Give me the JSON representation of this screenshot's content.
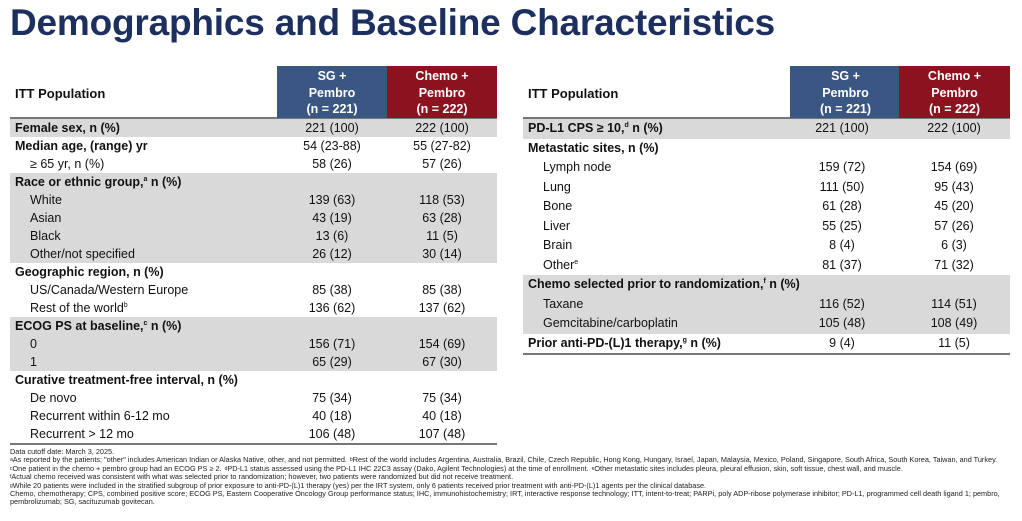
{
  "title": "Demographics and Baseline Characteristics",
  "columns": {
    "population": "ITT Population",
    "sg": [
      "SG +",
      "Pembro",
      "(n = 221)"
    ],
    "chemo": [
      "Chemo +",
      "Pembro",
      "(n = 222)"
    ]
  },
  "colors": {
    "sg_header": "#3a5682",
    "chemo_header": "#8c1220",
    "shade": "#d9d9d9",
    "title": "#1c2f5e"
  },
  "left_rows": [
    {
      "label": "Female sex, n (%)",
      "type": "head",
      "shade": true,
      "v1": "221 (100)",
      "v2": "222 (100)"
    },
    {
      "label": "Median age, (range) yr",
      "type": "head",
      "shade": false,
      "v1": "54 (23-88)",
      "v2": "55 (27-82)"
    },
    {
      "label": "≥ 65 yr, n (%)",
      "type": "sub0",
      "shade": false,
      "v1": "58 (26)",
      "v2": "57 (26)"
    },
    {
      "label": "Race or ethnic group,",
      "sup": "a",
      "rest": " n (%)",
      "type": "head",
      "shade": true
    },
    {
      "label": "White",
      "type": "sub",
      "shade": true,
      "v1": "139 (63)",
      "v2": "118 (53)"
    },
    {
      "label": "Asian",
      "type": "sub",
      "shade": true,
      "v1": "43 (19)",
      "v2": "63 (28)"
    },
    {
      "label": "Black",
      "type": "sub",
      "shade": true,
      "v1": "13 (6)",
      "v2": "11 (5)"
    },
    {
      "label": "Other/not specified",
      "type": "sub",
      "shade": true,
      "v1": "26 (12)",
      "v2": "30 (14)"
    },
    {
      "label": "Geographic region, n (%)",
      "type": "head",
      "shade": false
    },
    {
      "label": "US/Canada/Western Europe",
      "type": "sub",
      "shade": false,
      "v1": "85 (38)",
      "v2": "85 (38)"
    },
    {
      "label": "Rest of the world",
      "sup": "b",
      "type": "sub",
      "shade": false,
      "v1": "136 (62)",
      "v2": "137 (62)"
    },
    {
      "label": "ECOG PS at baseline,",
      "sup": "c",
      "rest": " n (%)",
      "type": "head",
      "shade": true
    },
    {
      "label": "0",
      "type": "sub",
      "shade": true,
      "v1": "156 (71)",
      "v2": "154 (69)"
    },
    {
      "label": "1",
      "type": "sub",
      "shade": true,
      "v1": "65 (29)",
      "v2": "67 (30)"
    },
    {
      "label": "Curative treatment-free interval, n (%)",
      "type": "head",
      "shade": false
    },
    {
      "label": "De novo",
      "type": "sub",
      "shade": false,
      "v1": "75 (34)",
      "v2": "75 (34)"
    },
    {
      "label": "Recurrent within 6-12 mo",
      "type": "sub",
      "shade": false,
      "v1": "40 (18)",
      "v2": "40 (18)"
    },
    {
      "label": "Recurrent > 12 mo",
      "type": "sub",
      "shade": false,
      "v1": "106 (48)",
      "v2": "107 (48)"
    }
  ],
  "right_rows": [
    {
      "label": "PD-L1 CPS ≥ 10,",
      "sup": "d",
      "rest": " n (%)",
      "type": "head",
      "shade": true,
      "v1": "221 (100)",
      "v2": "222 (100)"
    },
    {
      "label": "Metastatic sites, n (%)",
      "type": "head",
      "shade": false
    },
    {
      "label": "Lymph node",
      "type": "sub",
      "shade": false,
      "v1": "159 (72)",
      "v2": "154 (69)"
    },
    {
      "label": "Lung",
      "type": "sub",
      "shade": false,
      "v1": "111 (50)",
      "v2": "95 (43)"
    },
    {
      "label": "Bone",
      "type": "sub",
      "shade": false,
      "v1": "61 (28)",
      "v2": "45 (20)"
    },
    {
      "label": "Liver",
      "type": "sub",
      "shade": false,
      "v1": "55 (25)",
      "v2": "57 (26)"
    },
    {
      "label": "Brain",
      "type": "sub",
      "shade": false,
      "v1": "8 (4)",
      "v2": "6 (3)"
    },
    {
      "label": "Other",
      "sup": "e",
      "type": "sub",
      "shade": false,
      "v1": "81 (37)",
      "v2": "71 (32)"
    },
    {
      "label": "Chemo selected prior to randomization,",
      "sup": "f",
      "rest": " n (%)",
      "type": "head",
      "shade": true
    },
    {
      "label": "Taxane",
      "type": "sub",
      "shade": true,
      "v1": "116 (52)",
      "v2": "114 (51)"
    },
    {
      "label": "Gemcitabine/carboplatin",
      "type": "sub",
      "shade": true,
      "v1": "105 (48)",
      "v2": "108 (49)"
    },
    {
      "label": "Prior anti-PD-(L)1 therapy,",
      "sup": "g",
      "rest": " n (%)",
      "type": "head",
      "shade": false,
      "v1": "9 (4)",
      "v2": "11 (5)"
    }
  ],
  "footnotes": {
    "cutoff": "Data cutoff date: March 3, 2025.",
    "notes": [
      {
        "sup": "a",
        "text": "As reported by the patients; \"other\" includes American Indian or Alaska Native, other, and not permitted. "
      },
      {
        "sup": "b",
        "text": "Rest of the world includes Argentina, Australia, Brazil, Chile, Czech Republic, Hong Kong, Hungary, Israel, Japan, Malaysia, Mexico, Poland, Singapore, South Africa, South Korea, Taiwan, and Turkey. "
      },
      {
        "sup": "c",
        "text": "One patient in the chemo + pembro group had an ECOG PS ≥ 2. "
      },
      {
        "sup": "d",
        "text": "PD-L1 status assessed using the PD-L1 IHC 22C3 assay (Dako, Agilent Technologies) at the time of enrollment. "
      },
      {
        "sup": "e",
        "text": "Other metastatic sites includes pleura, pleural effusion, skin, soft tissue, chest wall, and muscle. "
      },
      {
        "sup": "f",
        "text": "Actual chemo received was consistent with what was selected prior to randomization; however, two patients were randomized but did not receive treatment. "
      },
      {
        "sup": "g",
        "text": "While 20 patients were included in the stratified subgroup of prior exposure to anti-PD-(L)1 therapy (yes) per the IRT system, only 6 patients received prior treatment with anti-PD-(L)1 agents per the clinical database."
      }
    ],
    "abbreviations": "Chemo, chemotherapy; CPS, combined positive score; ECOG PS, Eastern Cooperative Oncology Group performance status; IHC, immunohistochemistry; IRT, interactive response technology; ITT, intent-to-treat; PARPi, poly ADP-ribose polymerase inhibitor; PD-L1, programmed cell death ligand 1; pembro, pembrolizumab; SG, sacituzumab govitecan."
  }
}
